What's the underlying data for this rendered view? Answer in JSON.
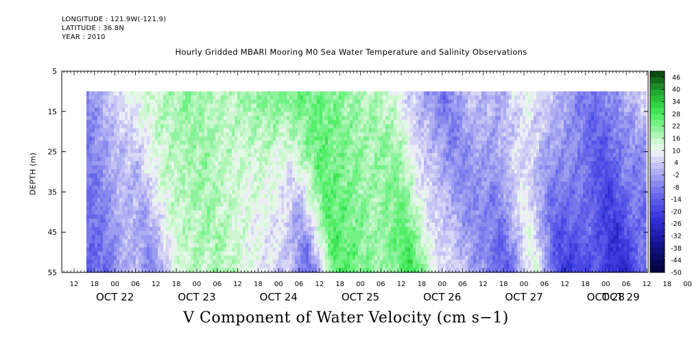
{
  "header": {
    "longitude": "LONGITUDE : 121.9W(-121.9)",
    "latitude": "LATITUDE : 36.8N",
    "year": "YEAR : 2010"
  },
  "chart_data": {
    "type": "heatmap",
    "title": "Hourly Gridded MBARI Mooring M0 Sea Water Temperature and Salinity Observations",
    "xlabel": "V Component of Water Velocity (cm s−1)",
    "ylabel": "DEPTH (m)",
    "y_ticks": [
      5,
      15,
      25,
      35,
      45,
      55
    ],
    "y_range": [
      5,
      55
    ],
    "y_inverted": true,
    "data_depth_range": [
      10,
      55
    ],
    "x_range_hours": [
      0,
      194
    ],
    "x_hour_ticks": [
      "12",
      "18",
      "00",
      "06",
      "12",
      "18",
      "00",
      "06",
      "12",
      "18",
      "00",
      "06",
      "12",
      "18",
      "00",
      "06",
      "12",
      "18",
      "00",
      "06",
      "12",
      "18",
      "00",
      "06",
      "12",
      "18",
      "00",
      "06",
      "12",
      "18",
      "00",
      "06"
    ],
    "x_day_labels": [
      "OCT 22",
      "OCT 23",
      "OCT 24",
      "OCT 25",
      "OCT 26",
      "OCT 27",
      "OCT 28",
      "OCT 29"
    ],
    "data_start": "OCT 21 16:00",
    "colorbar": {
      "labels": [
        "46",
        "40",
        "34",
        "28",
        "22",
        "16",
        "10",
        "4",
        "-2",
        "-8",
        "-14",
        "-20",
        "-26",
        "-32",
        "-38",
        "-44",
        "-50"
      ],
      "levels": [
        52,
        46,
        43,
        40,
        37,
        34,
        31,
        28,
        25,
        22,
        19,
        16,
        13,
        10,
        7,
        4,
        1,
        -2,
        -5,
        -8,
        -11,
        -14,
        -17,
        -20,
        -23,
        -26,
        -29,
        -32,
        -35,
        -38,
        -41,
        -44,
        -47,
        -50
      ],
      "colors": [
        "#0c4a14",
        "#146a1c",
        "#1c8a26",
        "#22a830",
        "#28c03a",
        "#30d444",
        "#3ee456",
        "#55ee6a",
        "#72f184",
        "#90f29e",
        "#b0f5b8",
        "#cdf7d1",
        "#e4f8e6",
        "#ececf7",
        "#d6d6f5",
        "#c2c2f4",
        "#aeaef2",
        "#9c9cf0",
        "#8a8aee",
        "#7878ec",
        "#6666ea",
        "#5656e8",
        "#4848e4",
        "#3c3cdc",
        "#3030d2",
        "#2828c4",
        "#2020b4",
        "#1a1aa2",
        "#14148e",
        "#10107a",
        "#0c0c66",
        "#080852",
        "#040440"
      ]
    },
    "surface_profile": [
      {
        "hour": 2,
        "v": -8
      },
      {
        "hour": 12,
        "v": 6
      },
      {
        "hour": 22,
        "v": 14
      },
      {
        "hour": 32,
        "v": 20
      },
      {
        "hour": 44,
        "v": 16
      },
      {
        "hour": 56,
        "v": 22
      },
      {
        "hour": 68,
        "v": 24
      },
      {
        "hour": 80,
        "v": 20
      },
      {
        "hour": 92,
        "v": 14
      },
      {
        "hour": 100,
        "v": 2
      },
      {
        "hour": 108,
        "v": -10
      },
      {
        "hour": 116,
        "v": 4
      },
      {
        "hour": 124,
        "v": -2
      },
      {
        "hour": 132,
        "v": 12
      },
      {
        "hour": 140,
        "v": 2
      },
      {
        "hour": 150,
        "v": -10
      },
      {
        "hour": 158,
        "v": -6
      },
      {
        "hour": 166,
        "v": 6
      },
      {
        "hour": 174,
        "v": -12
      },
      {
        "hour": 184,
        "v": -4
      },
      {
        "hour": 192,
        "v": 8
      }
    ],
    "bottom_profile": [
      {
        "hour": 2,
        "v": -12
      },
      {
        "hour": 10,
        "v": 2
      },
      {
        "hour": 16,
        "v": -8
      },
      {
        "hour": 24,
        "v": 14
      },
      {
        "hour": 36,
        "v": 18
      },
      {
        "hour": 46,
        "v": 10
      },
      {
        "hour": 56,
        "v": 2
      },
      {
        "hour": 62,
        "v": -14
      },
      {
        "hour": 70,
        "v": 28
      },
      {
        "hour": 76,
        "v": 24
      },
      {
        "hour": 84,
        "v": 18
      },
      {
        "hour": 92,
        "v": 30
      },
      {
        "hour": 100,
        "v": 6
      },
      {
        "hour": 106,
        "v": 4
      },
      {
        "hour": 114,
        "v": -8
      },
      {
        "hour": 120,
        "v": -16
      },
      {
        "hour": 128,
        "v": 16
      },
      {
        "hour": 136,
        "v": -24
      },
      {
        "hour": 146,
        "v": -16
      },
      {
        "hour": 154,
        "v": -28
      },
      {
        "hour": 160,
        "v": -10
      },
      {
        "hour": 168,
        "v": -26
      },
      {
        "hour": 176,
        "v": -4
      },
      {
        "hour": 186,
        "v": -20
      },
      {
        "hour": 192,
        "v": -14
      }
    ]
  }
}
